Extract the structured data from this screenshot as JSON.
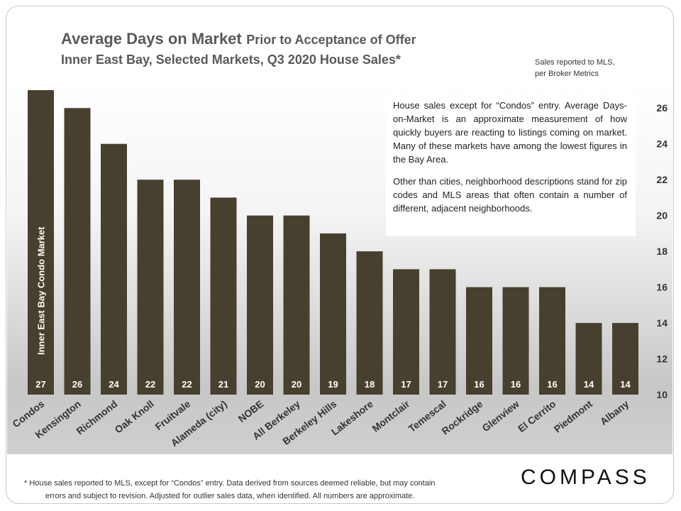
{
  "header": {
    "title_main": "Average Days on Market",
    "title_rest": "Prior to Acceptance of Offer",
    "subtitle": "Inner East Bay, Selected Markets, Q3 2020 House Sales*",
    "source_line1": "Sales reported to MLS,",
    "source_line2": "per Broker Metrics"
  },
  "note": {
    "para1": "House sales except for “Condos” entry. Average Days-on-Market is an approximate measurement of how quickly buyers are reacting to listings coming on market. Many of these markets have among the lowest figures in the Bay Area.",
    "para2": "Other than cities, neighborhood descriptions stand for zip codes and MLS areas that often contain a number of different, adjacent neighborhoods."
  },
  "footer": {
    "footnote_line1": "* House sales reported to MLS, except for “Condos” entry. Data derived from sources deemed reliable, but may contain",
    "footnote_line2": "errors and subject to revision. Adjusted for outlier sales data, when identified. All numbers are approximate.",
    "logo": "COMPASS"
  },
  "colors": {
    "bar": "#48402e",
    "axis_text": "#333333",
    "title": "#5a5a5a"
  },
  "chart_data": {
    "type": "bar",
    "title": "Average Days on Market Prior to Acceptance of Offer",
    "subtitle": "Inner East Bay, Selected Markets, Q3 2020 House Sales*",
    "categories": [
      "Condos",
      "Kensington",
      "Richmond",
      "Oak Knoll",
      "Fruitvale",
      "Alameda (city)",
      "NOBE",
      "All Berkeley",
      "Berkeley Hills",
      "Lakeshore",
      "Montclair",
      "Temescal",
      "Rockridge",
      "Glenview",
      "El Cerrito",
      "Piedmont",
      "Albany"
    ],
    "values": [
      27,
      26,
      24,
      22,
      22,
      21,
      20,
      20,
      19,
      18,
      17,
      17,
      16,
      16,
      16,
      14,
      14
    ],
    "ylim": [
      10,
      27
    ],
    "yticks": [
      10,
      12,
      14,
      16,
      18,
      20,
      22,
      24,
      26
    ],
    "yaxis_position": "right",
    "grid": false,
    "annotation": "Inner East Bay Condo Market"
  }
}
